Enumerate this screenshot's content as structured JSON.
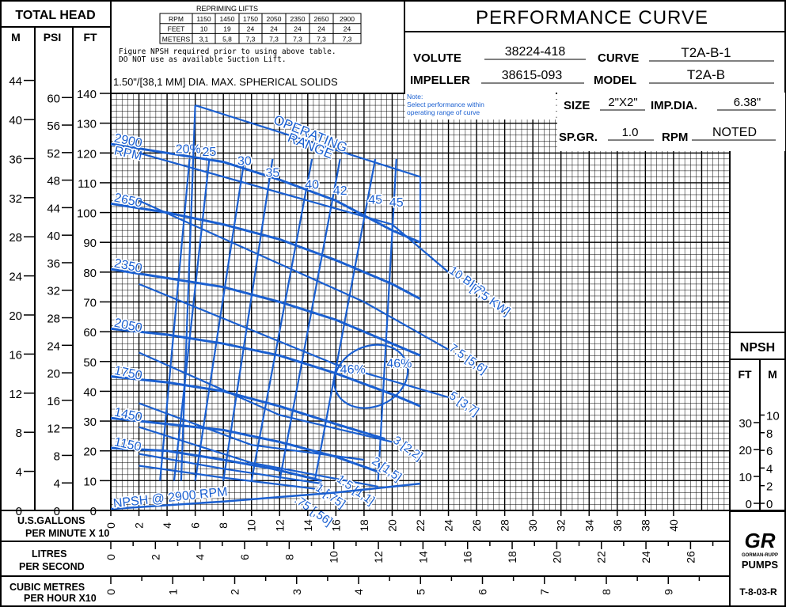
{
  "header": {
    "total_head": "TOTAL HEAD",
    "unit_m": "M",
    "unit_psi": "PSI",
    "unit_ft": "FT",
    "title": "PERFORMANCE CURVE",
    "solids_note": "1.50\"/[38,1 MM] DIA. MAX. SPHERICAL SOLIDS",
    "npsh_note_1": "Figure NPSH required prior to using above table.",
    "npsh_note_2": "DO NOT use as available Suction Lift.",
    "op_note_1": "Note:",
    "op_note_2": "Select performance within",
    "op_note_3": "operating range of curve"
  },
  "repriming_table": {
    "title": "REPRIMING LIFTS",
    "rows": [
      {
        "label": "RPM",
        "values": [
          "1150",
          "1450",
          "1750",
          "2050",
          "2350",
          "2650",
          "2900"
        ]
      },
      {
        "label": "FEET",
        "values": [
          "10",
          "19",
          "24",
          "24",
          "24",
          "24",
          "24"
        ]
      },
      {
        "label": "METERS",
        "values": [
          "3,1",
          "5,8",
          "7,3",
          "7,3",
          "7,3",
          "7,3",
          "7,3"
        ]
      }
    ]
  },
  "spec": {
    "volute_label": "VOLUTE",
    "volute": "38224-418",
    "curve_label": "CURVE",
    "curve": "T2A-B-1",
    "impeller_label": "IMPELLER",
    "impeller": "38615-093",
    "model_label": "MODEL",
    "model": "T2A-B",
    "size_label": "SIZE",
    "size": "2\"X2\"",
    "impdia_label": "IMP.DIA.",
    "impdia": "6.38\"",
    "spgr_label": "SP.GR.",
    "spgr": "1.0",
    "rpm_label": "RPM",
    "rpm": "NOTED"
  },
  "npsh_box": {
    "title": "NPSH",
    "ft": "FT",
    "m": "M",
    "ft_ticks": [
      "30",
      "20",
      "10",
      "0"
    ],
    "m_ticks": [
      "10",
      "8",
      "6",
      "4",
      "2",
      "0"
    ]
  },
  "axes_labels": {
    "usgal_1": "U.S.GALLONS",
    "usgal_2": "PER MINUTE X 10",
    "lps_1": "LITRES",
    "lps_2": "PER SECOND",
    "m3h_1": "CUBIC METRES",
    "m3h_2": "PER HOUR X10"
  },
  "footer": {
    "code": "T-8-03-R",
    "logo_1": "GR",
    "logo_2": "GORMAN-RUPP",
    "logo_3": "PUMPS"
  },
  "colors": {
    "curve": "#1a5fd0",
    "grid": "#000000"
  },
  "chart_data": {
    "type": "line",
    "title": "PERFORMANCE CURVE",
    "xlabel": "U.S.GALLONS PER MINUTE X 10",
    "ylabel": "TOTAL HEAD",
    "xlim": [
      0,
      44
    ],
    "ylim": [
      0,
      140
    ],
    "x_ticks": [
      0,
      2,
      4,
      6,
      8,
      10,
      12,
      14,
      16,
      18,
      20,
      22,
      24,
      26,
      28,
      30,
      32,
      34,
      36,
      38,
      40
    ],
    "ft_ticks": [
      0,
      10,
      20,
      30,
      40,
      50,
      60,
      70,
      80,
      90,
      100,
      110,
      120,
      130,
      140
    ],
    "psi_ticks": [
      0,
      4,
      8,
      12,
      16,
      20,
      24,
      28,
      32,
      36,
      40,
      44,
      48,
      52,
      56,
      60
    ],
    "m_ticks": [
      0,
      4,
      8,
      12,
      16,
      20,
      24,
      28,
      32,
      36,
      40,
      44
    ],
    "lps_ticks": [
      "0",
      "2",
      "4",
      "6",
      "8",
      "10",
      "12",
      "14",
      "16",
      "18",
      "20",
      "22",
      "24",
      "26"
    ],
    "m3h_ticks": [
      "0",
      "1",
      "2",
      "3",
      "4",
      "5",
      "6",
      "7",
      "8",
      "9"
    ],
    "grid": true,
    "series": [
      {
        "name": "2900 RPM",
        "label1": "2900",
        "label2": "RPM",
        "x": [
          0,
          4,
          8,
          12,
          16,
          20,
          22
        ],
        "y": [
          123,
          120,
          117,
          111,
          104,
          94,
          90
        ]
      },
      {
        "name": "2650",
        "label1": "2650",
        "x": [
          0,
          4,
          8,
          12,
          16,
          20,
          22
        ],
        "y": [
          103,
          100,
          96,
          91,
          84,
          76,
          71
        ]
      },
      {
        "name": "2350",
        "label1": "2350",
        "x": [
          0,
          4,
          8,
          12,
          16,
          20,
          22
        ],
        "y": [
          81,
          78,
          75,
          70,
          64,
          56,
          52
        ]
      },
      {
        "name": "2050",
        "label1": "2050",
        "x": [
          0,
          4,
          8,
          12,
          16,
          20,
          22
        ],
        "y": [
          61,
          59,
          56,
          52,
          46,
          39,
          35
        ]
      },
      {
        "name": "1750",
        "label1": "1750",
        "x": [
          0,
          4,
          8,
          12,
          16,
          19.5
        ],
        "y": [
          45,
          43,
          40,
          35,
          29,
          24
        ]
      },
      {
        "name": "1450",
        "label1": "1450",
        "x": [
          0,
          4,
          8,
          12,
          16,
          19
        ],
        "y": [
          31,
          29,
          27,
          23,
          18,
          13
        ]
      },
      {
        "name": "1150",
        "label1": "1150",
        "x": [
          0,
          4,
          8,
          11.5,
          15
        ],
        "y": [
          21,
          20,
          17,
          14,
          10
        ]
      }
    ],
    "bhp_lines": [
      {
        "label": "10 BHP [7,5 KW]",
        "x": [
          2,
          20,
          24
        ],
        "y": [
          120,
          96,
          80
        ]
      },
      {
        "label": "7.5 [5,6]",
        "x": [
          2,
          18,
          24
        ],
        "y": [
          104,
          70,
          54
        ]
      },
      {
        "label": "5 [3,7]",
        "x": [
          2,
          16,
          24
        ],
        "y": [
          76,
          49,
          38
        ]
      },
      {
        "label": "3 [2,2]",
        "x": [
          2,
          12,
          20
        ],
        "y": [
          53,
          32,
          23
        ]
      },
      {
        "label": "2 [1,5]",
        "x": [
          2,
          10,
          18
        ],
        "y": [
          36,
          22,
          17
        ]
      },
      {
        "label": "1.5 [1,1]",
        "x": [
          2,
          10,
          19
        ],
        "y": [
          28,
          16,
          8
        ]
      },
      {
        "label": "1 [.75]",
        "x": [
          2,
          8,
          15
        ],
        "y": [
          19,
          14,
          9
        ]
      },
      {
        "label": ".75 [,56]",
        "x": [
          2,
          8,
          15
        ],
        "y": [
          15,
          11,
          7
        ]
      }
    ],
    "bhp_labels": [
      {
        "text": "10 BHP",
        "x": 24,
        "y": 80
      },
      {
        "text": "[7,5 KW]",
        "x": 25.5,
        "y": 74
      },
      {
        "text": "7.5 [5,6]",
        "x": 24,
        "y": 54
      },
      {
        "text": "5 [3,7]",
        "x": 24,
        "y": 38
      },
      {
        "text": "3 [2,2]",
        "x": 20,
        "y": 23
      },
      {
        "text": "2 [1,5]",
        "x": 18.5,
        "y": 16
      },
      {
        "text": "1.5 [1,1]",
        "x": 16,
        "y": 10
      },
      {
        "text": "1 [.75]",
        "x": 14.5,
        "y": 7
      },
      {
        "text": ".75 [,56]",
        "x": 13,
        "y": 3
      }
    ],
    "efficiency_labels": [
      {
        "text": "20%",
        "x": 5.5,
        "y": 120
      },
      {
        "text": "25",
        "x": 7,
        "y": 119
      },
      {
        "text": "30",
        "x": 9.5,
        "y": 116
      },
      {
        "text": "35",
        "x": 11.5,
        "y": 112
      },
      {
        "text": "40",
        "x": 14.3,
        "y": 108
      },
      {
        "text": "42",
        "x": 16.3,
        "y": 106
      },
      {
        "text": "45",
        "x": 18.8,
        "y": 103
      },
      {
        "text": "45",
        "x": 20.3,
        "y": 102
      },
      {
        "text": "46%",
        "x": 17.2,
        "y": 46
      },
      {
        "text": "46%",
        "x": 20.5,
        "y": 48
      }
    ],
    "npsh": {
      "name": "NPSH @ 2900 RPM",
      "x": [
        0,
        8,
        16,
        22
      ],
      "y": [
        0.5,
        3,
        6,
        9
      ]
    },
    "operating_range": {
      "label1": "OPERATING",
      "label2": "RANGE",
      "x": [
        6,
        22
      ],
      "y": [
        136,
        112
      ]
    }
  }
}
